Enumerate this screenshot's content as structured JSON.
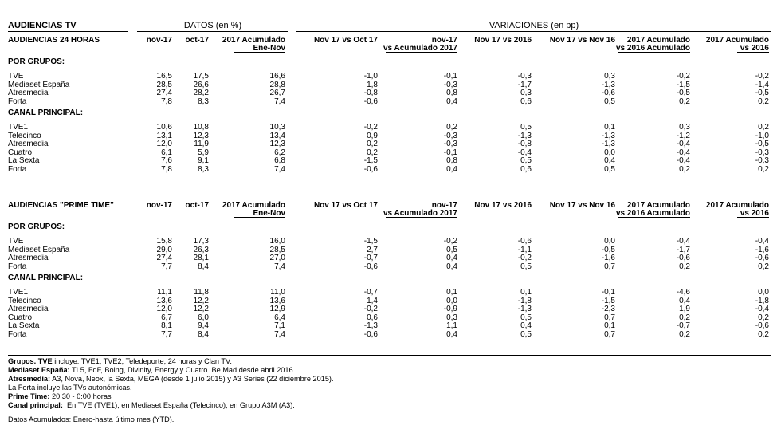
{
  "title": "AUDIENCIAS TV",
  "datos_label": "DATOS (en %)",
  "variaciones_label": "VARIACIONES (en pp)",
  "sections": [
    {
      "header_label": "AUDIENCIAS 24 HORAS",
      "columns": [
        [
          "nov-17"
        ],
        [
          "oct-17"
        ],
        [
          "2017 Acumulado",
          "Ene-Nov"
        ],
        [
          "Nov 17 vs Oct 17"
        ],
        [
          "nov-17",
          "vs Acumulado 2017"
        ],
        [
          "Nov 17 vs 2016"
        ],
        [
          "Nov 17 vs Nov 16"
        ],
        [
          "2017 Acumulado",
          "vs 2016 Acumulado"
        ],
        [
          "2017 Acumulado",
          "vs 2016"
        ]
      ],
      "groups": [
        {
          "label": "POR GRUPOS:",
          "rows": [
            [
              "TVE",
              "16,5",
              "17,5",
              "16,6",
              "-1,0",
              "-0,1",
              "-0,3",
              "0,3",
              "-0,2",
              "-0,2"
            ],
            [
              "Mediaset España",
              "28,5",
              "26,6",
              "28,8",
              "1,8",
              "-0,3",
              "-1,7",
              "-1,3",
              "-1,5",
              "-1,4"
            ],
            [
              "Atresmedia",
              "27,4",
              "28,2",
              "26,7",
              "-0,8",
              "0,8",
              "0,3",
              "-0,6",
              "-0,5",
              "-0,5"
            ],
            [
              "Forta",
              "7,8",
              "8,3",
              "7,4",
              "-0,6",
              "0,4",
              "0,6",
              "0,5",
              "0,2",
              "0,2"
            ]
          ]
        },
        {
          "label": "CANAL PRINCIPAL:",
          "rows": [
            [
              "TVE1",
              "10,6",
              "10,8",
              "10,3",
              "-0,2",
              "0,2",
              "0,5",
              "0,1",
              "0,3",
              "0,2"
            ],
            [
              "Telecinco",
              "13,1",
              "12,3",
              "13,4",
              "0,9",
              "-0,3",
              "-1,3",
              "-1,3",
              "-1,2",
              "-1,0"
            ],
            [
              "Atresmedia",
              "12,0",
              "11,9",
              "12,3",
              "0,2",
              "-0,3",
              "-0,8",
              "-1,3",
              "-0,4",
              "-0,5"
            ],
            [
              "Cuatro",
              "6,1",
              "5,9",
              "6,2",
              "0,2",
              "-0,1",
              "-0,4",
              "0,0",
              "-0,4",
              "-0,3"
            ],
            [
              "La Sexta",
              "7,6",
              "9,1",
              "6,8",
              "-1,5",
              "0,8",
              "0,5",
              "0,4",
              "-0,4",
              "-0,3"
            ],
            [
              "Forta",
              "7,8",
              "8,3",
              "7,4",
              "-0,6",
              "0,4",
              "0,6",
              "0,5",
              "0,2",
              "0,2"
            ]
          ]
        }
      ]
    },
    {
      "header_label": "AUDIENCIAS \"PRIME TIME\"",
      "columns": [
        [
          "nov-17"
        ],
        [
          "oct-17"
        ],
        [
          "2017 Acumulado",
          "Ene-Nov"
        ],
        [
          "Nov 17 vs Oct 17"
        ],
        [
          "nov-17",
          "vs Acumulado 2017"
        ],
        [
          "Nov 17 vs 2016"
        ],
        [
          "Nov 17 vs Nov 16"
        ],
        [
          "2017 Acumulado",
          "vs 2016 Acumulado"
        ],
        [
          "2017 Acumulado",
          "vs 2016"
        ]
      ],
      "groups": [
        {
          "label": "POR GRUPOS:",
          "rows": [
            [
              "TVE",
              "15,8",
              "17,3",
              "16,0",
              "-1,5",
              "-0,2",
              "-0,6",
              "0,0",
              "-0,4",
              "-0,4"
            ],
            [
              "Mediaset España",
              "29,0",
              "26,3",
              "28,5",
              "2,7",
              "0,5",
              "-1,1",
              "-0,5",
              "-1,7",
              "-1,6"
            ],
            [
              "Atresmedia",
              "27,4",
              "28,1",
              "27,0",
              "-0,7",
              "0,4",
              "-0,2",
              "-1,6",
              "-0,6",
              "-0,6"
            ],
            [
              "Forta",
              "7,7",
              "8,4",
              "7,4",
              "-0,6",
              "0,4",
              "0,5",
              "0,7",
              "0,2",
              "0,2"
            ]
          ]
        },
        {
          "label": "CANAL PRINCIPAL:",
          "rows": [
            [
              "TVE1",
              "11,1",
              "11,8",
              "11,0",
              "-0,7",
              "0,1",
              "0,1",
              "-0,1",
              "-4,6",
              "0,0"
            ],
            [
              "Telecinco",
              "13,6",
              "12,2",
              "13,6",
              "1,4",
              "0,0",
              "-1,8",
              "-1,5",
              "0,4",
              "-1,8"
            ],
            [
              "Atresmedia",
              "12,0",
              "12,2",
              "12,9",
              "-0,2",
              "-0,9",
              "-1,3",
              "-2,3",
              "1,9",
              "-0,4"
            ],
            [
              "Cuatro",
              "6,7",
              "6,0",
              "6,4",
              "0,6",
              "0,3",
              "0,5",
              "0,7",
              "0,2",
              "0,2"
            ],
            [
              "La Sexta",
              "8,1",
              "9,4",
              "7,1",
              "-1,3",
              "1,1",
              "0,4",
              "0,1",
              "-0,7",
              "-0,6"
            ],
            [
              "Forta",
              "7,7",
              "8,4",
              "7,4",
              "-0,6",
              "0,4",
              "0,5",
              "0,7",
              "0,2",
              "0,2"
            ]
          ]
        }
      ]
    }
  ],
  "notes": [
    {
      "bold": "Grupos. TVE",
      "text": " incluye: TVE1, TVE2, Teledeporte, 24 horas y Clan TV."
    },
    {
      "bold": "Mediaset España:",
      "text": " TL5, FdF, Boing, Divinity, Energy y Cuatro. Be Mad desde abril 2016."
    },
    {
      "bold": "Atresmedia:",
      "text": " A3, Nova, Neox, la Sexta, MEGA (desde 1 julio 2015) y A3 Series (22 diciembre 2015)."
    },
    {
      "bold": "",
      "text": "La Forta incluye las TVs autonómicas."
    },
    {
      "bold": "Prime Time:",
      "text": " 20:30 - 0:00 horas"
    },
    {
      "bold": "Canal principal:",
      "text": "  En TVE (TVE1), en Mediaset España (Telecinco), en Grupo A3M (A3)."
    },
    {
      "bold": "",
      "text": "Datos Acumulados: Enero-hasta último mes (YTD)."
    }
  ]
}
